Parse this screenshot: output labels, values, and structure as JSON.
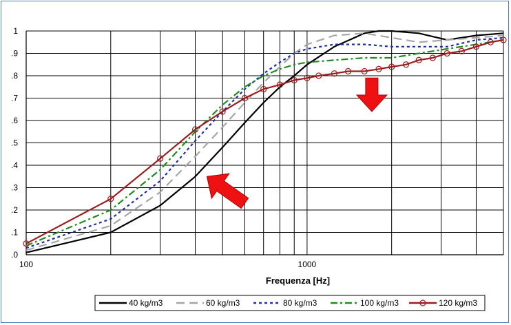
{
  "chart_data": {
    "type": "line",
    "title": "",
    "xlabel": "Frequenza [Hz]",
    "ylabel": "",
    "xscale": "log",
    "xlim": [
      100,
      5000
    ],
    "ylim": [
      0,
      1
    ],
    "x_tick_labels": [
      "100",
      "1000"
    ],
    "y_tick_labels": [
      "0",
      "0.1",
      "0.2",
      "0.3",
      "0.4",
      "0.5",
      "0.6",
      "0.7",
      "0.8",
      "0.9",
      "1"
    ],
    "y_tick_values": [
      0,
      0.1,
      0.2,
      0.3,
      0.4,
      0.5,
      0.6,
      0.7,
      0.8,
      0.9,
      1
    ],
    "y_tick_display": [
      ".0",
      ".1",
      ".2",
      ".3",
      ".4",
      ".5",
      ".6",
      ".7",
      ".8",
      ".9",
      "1"
    ],
    "grid": true,
    "legend_position": "bottom",
    "series": [
      {
        "name": "40 kg/m3",
        "color": "#000000",
        "dash": "solid",
        "points": [
          [
            100,
            0.01
          ],
          [
            200,
            0.1
          ],
          [
            300,
            0.22
          ],
          [
            400,
            0.35
          ],
          [
            500,
            0.48
          ],
          [
            600,
            0.59
          ],
          [
            700,
            0.68
          ],
          [
            800,
            0.75
          ],
          [
            900,
            0.8
          ],
          [
            1000,
            0.85
          ],
          [
            1250,
            0.93
          ],
          [
            1600,
            0.99
          ],
          [
            1800,
            1.0
          ],
          [
            2000,
            1.0
          ],
          [
            2500,
            0.99
          ],
          [
            3150,
            0.96
          ],
          [
            4000,
            0.98
          ],
          [
            5000,
            0.99
          ]
        ]
      },
      {
        "name": "60 kg/m3",
        "color": "#a6a6a6",
        "dash": "dashed",
        "points": [
          [
            100,
            0.02
          ],
          [
            200,
            0.13
          ],
          [
            300,
            0.28
          ],
          [
            400,
            0.44
          ],
          [
            500,
            0.57
          ],
          [
            600,
            0.68
          ],
          [
            700,
            0.77
          ],
          [
            800,
            0.84
          ],
          [
            900,
            0.9
          ],
          [
            1000,
            0.94
          ],
          [
            1250,
            0.98
          ],
          [
            1600,
            0.99
          ],
          [
            2000,
            0.97
          ],
          [
            2500,
            0.95
          ],
          [
            3150,
            0.96
          ],
          [
            4000,
            0.97
          ],
          [
            5000,
            0.98
          ]
        ]
      },
      {
        "name": "80 kg/m3",
        "color": "#1f2fa8",
        "dash": "dotted",
        "points": [
          [
            100,
            0.03
          ],
          [
            200,
            0.16
          ],
          [
            300,
            0.33
          ],
          [
            400,
            0.51
          ],
          [
            500,
            0.64
          ],
          [
            600,
            0.74
          ],
          [
            700,
            0.81
          ],
          [
            800,
            0.86
          ],
          [
            900,
            0.9
          ],
          [
            1000,
            0.92
          ],
          [
            1250,
            0.94
          ],
          [
            1600,
            0.94
          ],
          [
            2000,
            0.93
          ],
          [
            2500,
            0.93
          ],
          [
            3150,
            0.93
          ],
          [
            4000,
            0.96
          ],
          [
            5000,
            0.97
          ]
        ]
      },
      {
        "name": "100 kg/m3",
        "color": "#1e8c1e",
        "dash": "dash-dot",
        "points": [
          [
            100,
            0.04
          ],
          [
            200,
            0.2
          ],
          [
            300,
            0.38
          ],
          [
            400,
            0.55
          ],
          [
            500,
            0.67
          ],
          [
            600,
            0.75
          ],
          [
            700,
            0.8
          ],
          [
            800,
            0.83
          ],
          [
            900,
            0.85
          ],
          [
            1000,
            0.86
          ],
          [
            1250,
            0.87
          ],
          [
            1600,
            0.88
          ],
          [
            2000,
            0.88
          ],
          [
            2500,
            0.9
          ],
          [
            3150,
            0.92
          ],
          [
            4000,
            0.94
          ],
          [
            5000,
            0.96
          ]
        ]
      },
      {
        "name": "120 kg/m3",
        "color": "#9b1c1c",
        "dash": "solid-circles",
        "points": [
          [
            100,
            0.05
          ],
          [
            200,
            0.25
          ],
          [
            300,
            0.43
          ],
          [
            400,
            0.56
          ],
          [
            500,
            0.64
          ],
          [
            600,
            0.7
          ],
          [
            700,
            0.74
          ],
          [
            800,
            0.76
          ],
          [
            900,
            0.78
          ],
          [
            1000,
            0.79
          ],
          [
            1100,
            0.8
          ],
          [
            1250,
            0.81
          ],
          [
            1400,
            0.82
          ],
          [
            1600,
            0.82
          ],
          [
            1800,
            0.83
          ],
          [
            2000,
            0.84
          ],
          [
            2250,
            0.85
          ],
          [
            2500,
            0.87
          ],
          [
            2800,
            0.88
          ],
          [
            3150,
            0.9
          ],
          [
            3550,
            0.91
          ],
          [
            4000,
            0.93
          ],
          [
            4500,
            0.95
          ],
          [
            5000,
            0.96
          ]
        ]
      }
    ],
    "annotations": [
      {
        "type": "arrow",
        "direction": "down",
        "color": "#ee1111",
        "x": 1700,
        "y_top": 0.79,
        "y_bottom": 0.64
      },
      {
        "type": "arrow",
        "direction": "up-left",
        "color": "#ee1111",
        "x_from": 600,
        "y_from": 0.23,
        "x_to": 440,
        "y_to": 0.35
      }
    ]
  }
}
